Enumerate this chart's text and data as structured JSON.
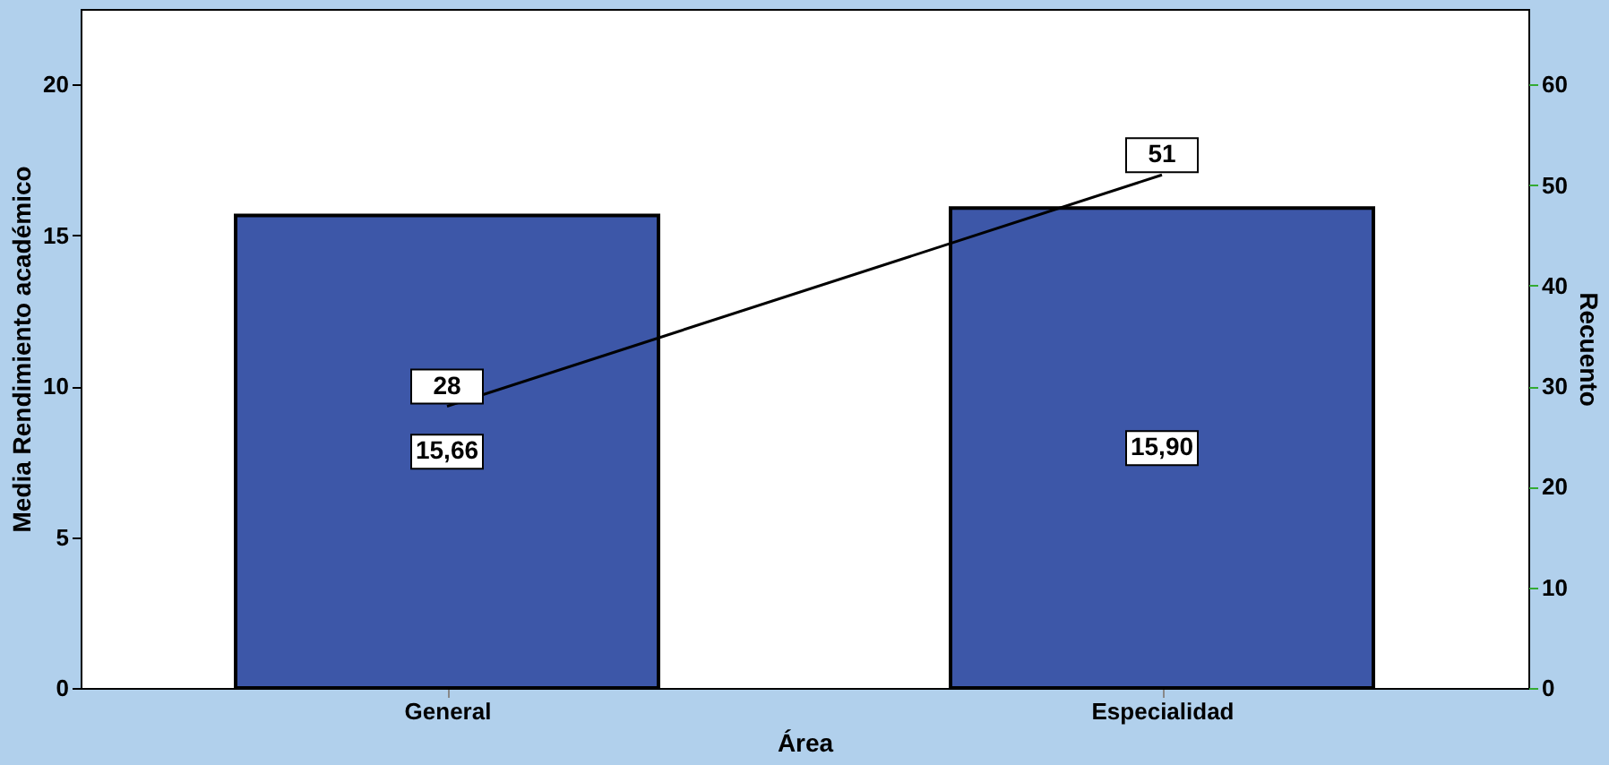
{
  "chart_data": {
    "type": "bar",
    "xlabel": "Área",
    "ylabel": "Media Rendimiento académico",
    "y2label": "Recuento",
    "categories": [
      "General",
      "Especialidad"
    ],
    "series": [
      {
        "color": "#3d57a8",
        "values": [
          15.66,
          15.9
        ],
        "value_labels": [
          "15,66",
          "15,90"
        ]
      },
      {
        "type": "line",
        "axis": "y2",
        "color": "#000000",
        "values": [
          28,
          51
        ],
        "value_labels": [
          "28",
          "51"
        ]
      }
    ],
    "ylim": [
      0,
      22.5
    ],
    "yticks": [
      0,
      5,
      10,
      15,
      20
    ],
    "y2lim": [
      0,
      67.5
    ],
    "y2ticks": [
      0,
      10,
      20,
      30,
      40,
      50,
      60
    ],
    "grid": false,
    "line_style": "solid"
  }
}
